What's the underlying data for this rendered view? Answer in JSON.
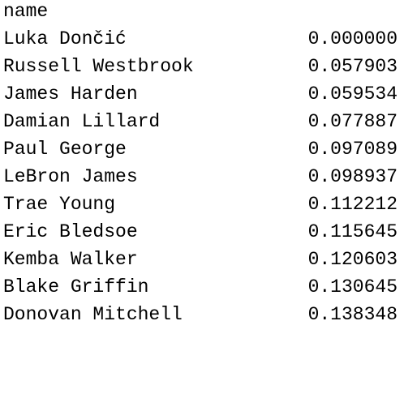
{
  "output": {
    "index_name": "name",
    "rows": [
      {
        "name": "Luka Dončić",
        "value": "0.000000"
      },
      {
        "name": "Russell Westbrook",
        "value": "0.057903"
      },
      {
        "name": "James Harden",
        "value": "0.059534"
      },
      {
        "name": "Damian Lillard",
        "value": "0.077887"
      },
      {
        "name": "Paul George",
        "value": "0.097089"
      },
      {
        "name": "LeBron James",
        "value": "0.098937"
      },
      {
        "name": "Trae Young",
        "value": "0.112212"
      },
      {
        "name": "Eric Bledsoe",
        "value": "0.115645"
      },
      {
        "name": "Kemba Walker",
        "value": "0.120603"
      },
      {
        "name": "Blake Griffin",
        "value": "0.130645"
      },
      {
        "name": "Donovan Mitchell",
        "value": "0.138348"
      }
    ]
  }
}
